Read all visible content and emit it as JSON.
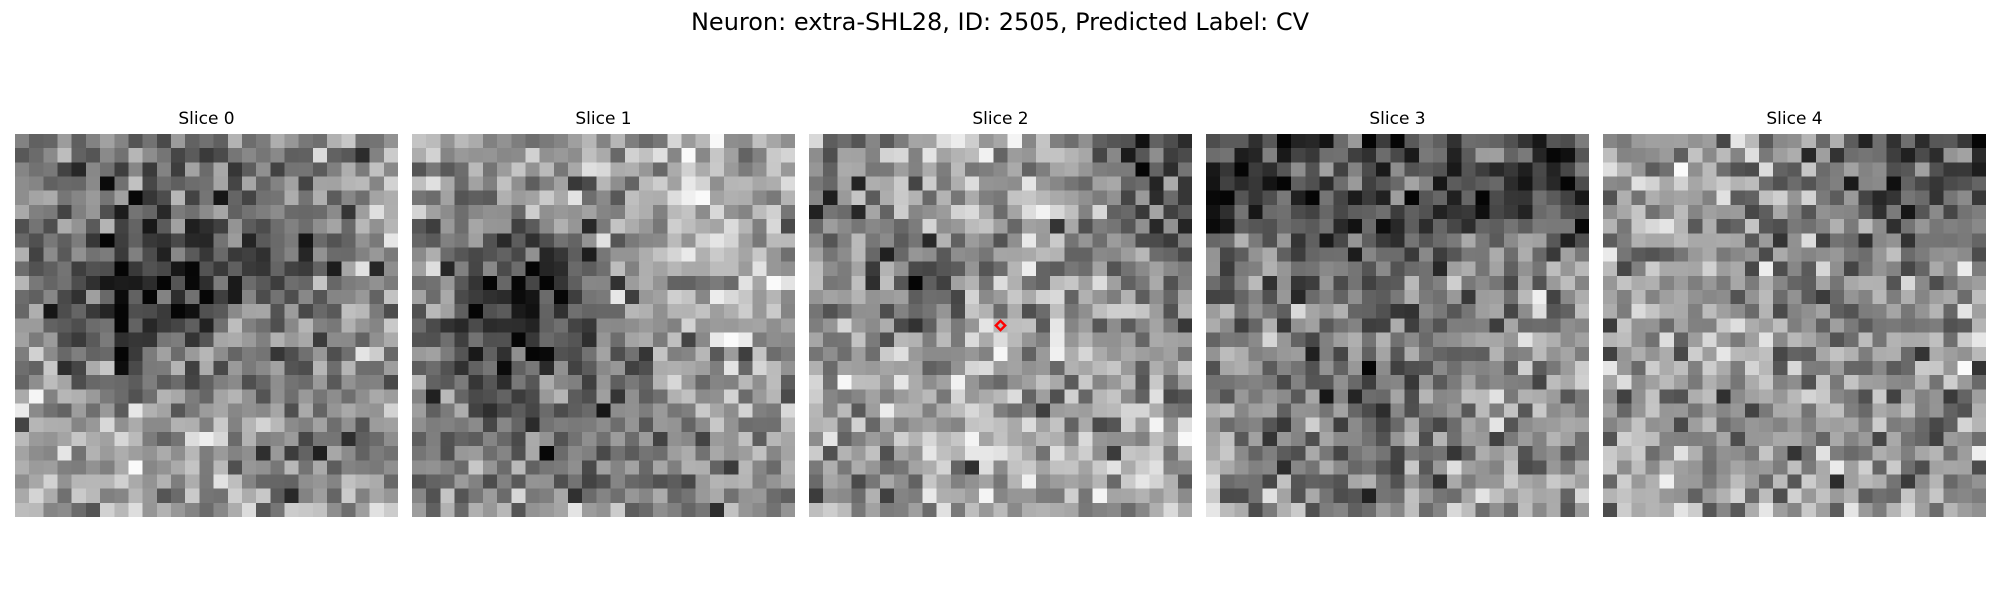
{
  "figure": {
    "title": "Neuron: extra-SHL28, ID: 2505, Predicted Label: CV"
  },
  "grid": {
    "rows": 27,
    "cols": 27,
    "marker_color": "#ff0000",
    "marker_row": 13,
    "marker_col": 13,
    "marker_slice": 2
  },
  "slices": [
    {
      "title": "Slice 0",
      "seed": 17,
      "base": 0.56,
      "blobs": [
        {
          "r": 10,
          "c": 9,
          "rad": 5.5,
          "amp": -0.38
        },
        {
          "r": 7,
          "c": 19,
          "rad": 3.5,
          "amp": -0.12
        },
        {
          "r": 20,
          "c": 22,
          "rad": 3.5,
          "amp": -0.14
        },
        {
          "r": 23,
          "c": 4,
          "rad": 5,
          "amp": 0.1
        },
        {
          "r": 16,
          "c": 14,
          "rad": 5,
          "amp": 0.08
        }
      ]
    },
    {
      "title": "Slice 1",
      "seed": 41,
      "base": 0.62,
      "blobs": [
        {
          "r": 12,
          "c": 6,
          "rad": 5,
          "amp": -0.32
        },
        {
          "r": 9,
          "c": 10,
          "rad": 3,
          "amp": -0.2
        },
        {
          "r": 23,
          "c": 14,
          "rad": 5.5,
          "amp": -0.16
        },
        {
          "r": 6,
          "c": 18,
          "rad": 6,
          "amp": 0.08
        },
        {
          "r": 19,
          "c": 3,
          "rad": 4,
          "amp": -0.1
        }
      ]
    },
    {
      "title": "Slice 2",
      "seed": 73,
      "base": 0.66,
      "blobs": [
        {
          "r": 10,
          "c": 8,
          "rad": 3,
          "amp": -0.34
        },
        {
          "r": 2,
          "c": 24,
          "rad": 4.5,
          "amp": -0.3
        },
        {
          "r": 3,
          "c": 1,
          "rad": 3.5,
          "amp": -0.26
        },
        {
          "r": 25,
          "c": 4,
          "rad": 4,
          "amp": -0.16
        },
        {
          "r": 14,
          "c": 20,
          "rad": 5,
          "amp": -0.08
        },
        {
          "r": 12,
          "c": 15,
          "rad": 5,
          "amp": 0.06
        }
      ]
    },
    {
      "title": "Slice 3",
      "seed": 101,
      "base": 0.58,
      "blobs": [
        {
          "r": 3,
          "c": 15,
          "rad": 8,
          "amp": -0.26
        },
        {
          "r": 2,
          "c": 2,
          "rad": 4,
          "amp": -0.28
        },
        {
          "r": 3,
          "c": 25,
          "rad": 3,
          "amp": -0.28
        },
        {
          "r": 19,
          "c": 11,
          "rad": 4.5,
          "amp": -0.2
        },
        {
          "r": 13,
          "c": 20,
          "rad": 5,
          "amp": 0.1
        }
      ]
    },
    {
      "title": "Slice 4",
      "seed": 137,
      "base": 0.64,
      "blobs": [
        {
          "r": 1,
          "c": 25,
          "rad": 4.5,
          "amp": -0.32
        },
        {
          "r": 6,
          "c": 16,
          "rad": 5,
          "amp": -0.18
        },
        {
          "r": 19,
          "c": 12,
          "rad": 4,
          "amp": -0.12
        },
        {
          "r": 20,
          "c": 22,
          "rad": 4,
          "amp": -0.1
        },
        {
          "r": 14,
          "c": 1,
          "rad": 3,
          "amp": -0.12
        }
      ]
    }
  ]
}
